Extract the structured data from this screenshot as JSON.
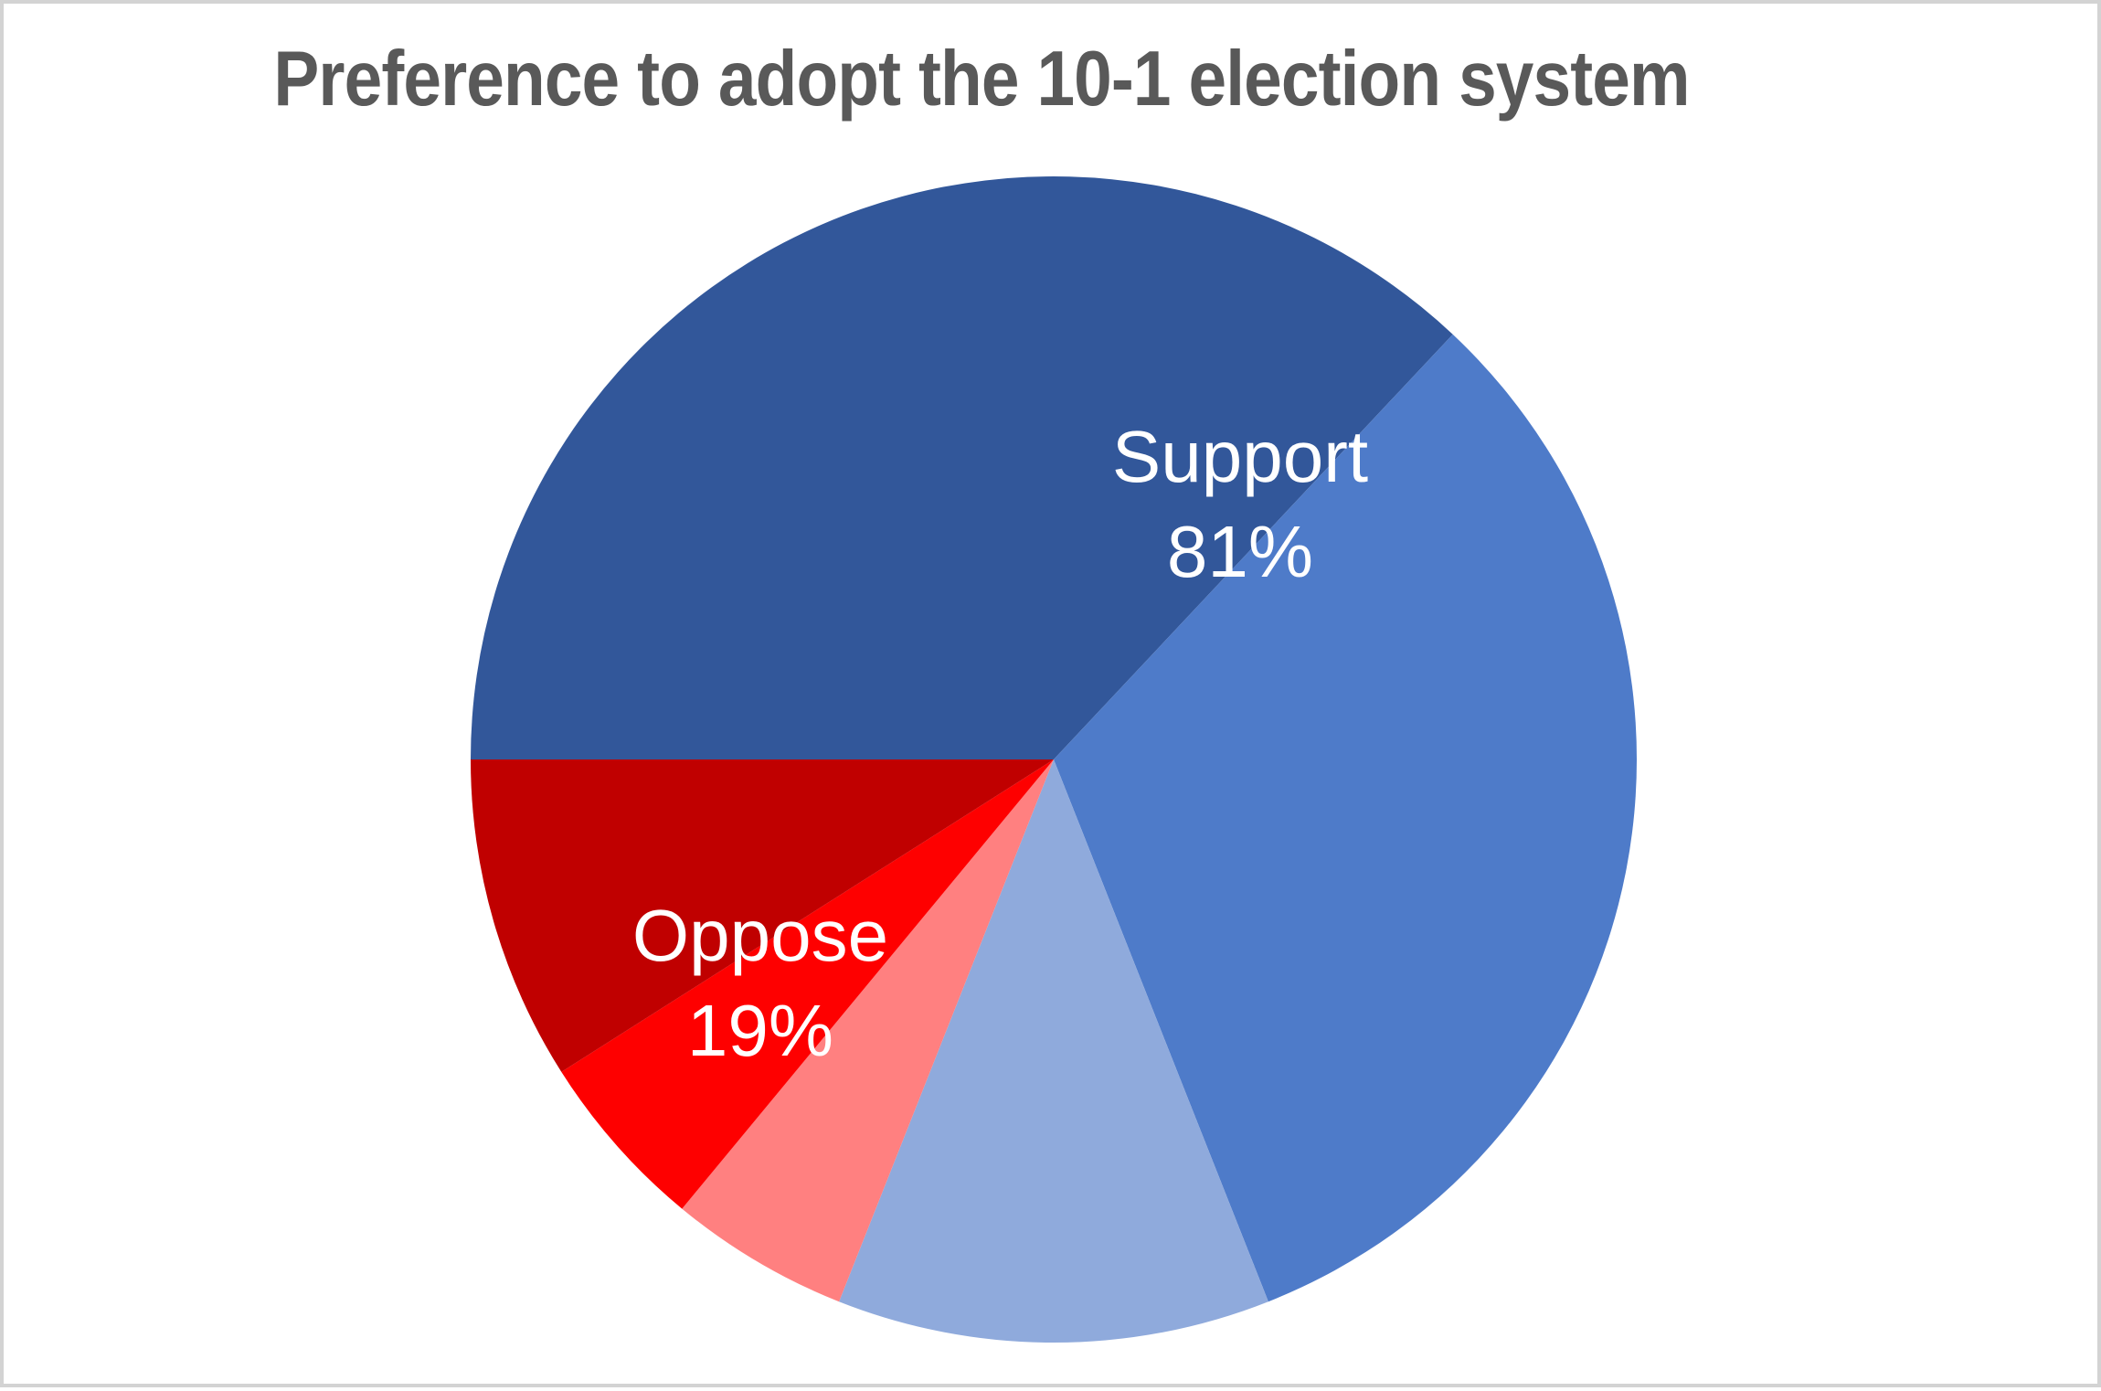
{
  "title": "Preference to adopt the 10-1 election system",
  "labels": {
    "support": {
      "name": "Support",
      "value": "81%"
    },
    "oppose": {
      "name": "Oppose",
      "value": "19%"
    }
  },
  "colors": {
    "title_text": "#595959",
    "data_label_text": "#FFFFFF",
    "frame_border": "#D3D3D3",
    "background": "#FFFFFF"
  },
  "chart_data": {
    "type": "pie",
    "title": "Preference to adopt the 10-1 election system",
    "start_angle_deg": 270,
    "direction": "clockwise",
    "legend": "none",
    "gridlines": false,
    "groups": [
      {
        "label": "Support",
        "percent": 81
      },
      {
        "label": "Oppose",
        "percent": 19
      }
    ],
    "segments": [
      {
        "id": "support-dark-blue",
        "group": "Support",
        "value": 37,
        "color": "#32579A"
      },
      {
        "id": "support-medium-blue",
        "group": "Support",
        "value": 32,
        "color": "#4E7BC9"
      },
      {
        "id": "support-light-blue",
        "group": "Support",
        "value": 12,
        "color": "#8FAADC"
      },
      {
        "id": "oppose-light-red",
        "group": "Oppose",
        "value": 5,
        "color": "#FF8080"
      },
      {
        "id": "oppose-bright-red",
        "group": "Oppose",
        "value": 5,
        "color": "#FE0000"
      },
      {
        "id": "oppose-dark-red",
        "group": "Oppose",
        "value": 9,
        "color": "#C00000"
      }
    ],
    "data_labels_visible": [
      {
        "lines": [
          "Support",
          "81%"
        ],
        "placement": "inside, upper-right of center"
      },
      {
        "lines": [
          "Oppose",
          "19%"
        ],
        "placement": "inside, lower-left of center"
      }
    ]
  }
}
